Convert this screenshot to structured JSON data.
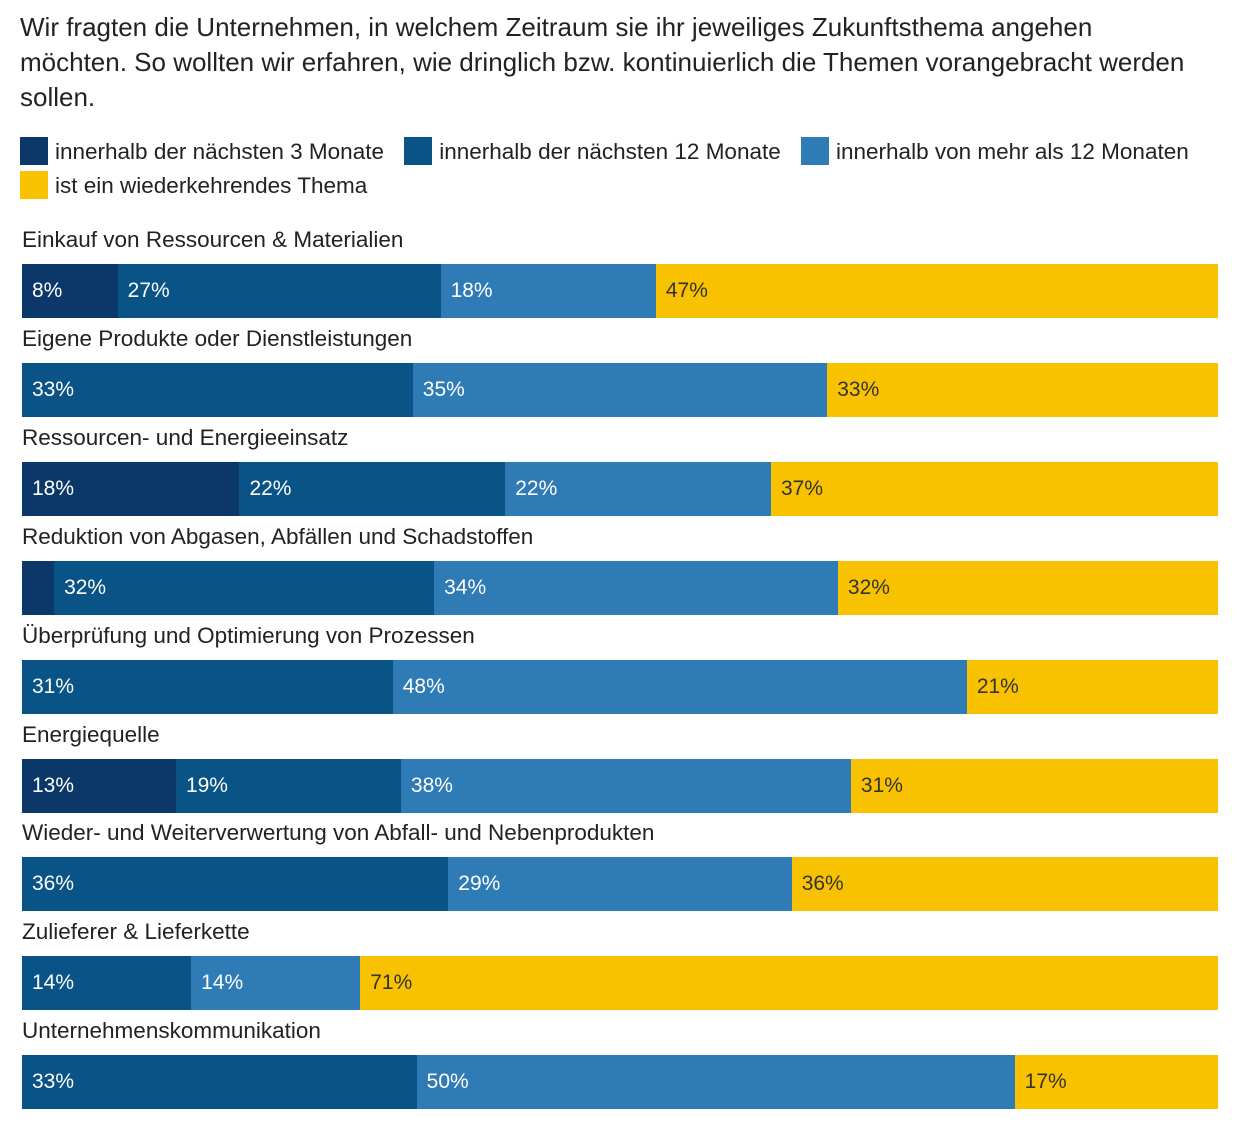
{
  "subtitle": "Wir fragten die Unternehmen, in welchem Zeitraum sie ihr jeweiliges Zukunftsthema angehen möchten. So wollten wir erfahren, wie dringlich bzw. kontinuierlich die Themen vorangebracht werden sollen.",
  "colors": [
    "#0b3868",
    "#0a5387",
    "#2e7bb6",
    "#f8c200"
  ],
  "chart_data": {
    "type": "bar",
    "orientation": "horizontal",
    "stacked": true,
    "value_unit": "%",
    "legend_position": "top",
    "series": [
      {
        "name": "innerhalb der nächsten 3 Monate"
      },
      {
        "name": "innerhalb der nächsten 12 Monate"
      },
      {
        "name": "innerhalb von mehr als 12 Monaten"
      },
      {
        "name": "ist ein wiederkehrendes Thema"
      }
    ],
    "rows": [
      {
        "label": "Einkauf von Ressourcen & Materialien",
        "values": [
          8,
          27,
          18,
          47
        ],
        "labels": [
          "8%",
          "27%",
          "18%",
          "47%"
        ]
      },
      {
        "label": "Eigene Produkte oder Dienstleistungen",
        "values": [
          0,
          33,
          35,
          33
        ],
        "labels": [
          "",
          "33%",
          "35%",
          "33%"
        ]
      },
      {
        "label": "Ressourcen- und Energieeinsatz",
        "values": [
          18,
          22,
          22,
          37
        ],
        "labels": [
          "18%",
          "22%",
          "22%",
          "37%"
        ]
      },
      {
        "label": "Reduktion von Abgasen, Abfällen und Schadstoffen",
        "values": [
          2.7,
          32,
          34,
          32
        ],
        "labels": [
          "",
          "32%",
          "34%",
          "32%"
        ]
      },
      {
        "label": "Überprüfung und Optimierung von Prozessen",
        "values": [
          0,
          31,
          48,
          21
        ],
        "labels": [
          "",
          "31%",
          "48%",
          "21%"
        ]
      },
      {
        "label": "Energiequelle",
        "values": [
          13,
          19,
          38,
          31
        ],
        "labels": [
          "13%",
          "19%",
          "38%",
          "31%"
        ]
      },
      {
        "label": "Wieder- und Weiterverwertung von Abfall- und Nebenprodukten",
        "values": [
          0,
          36,
          29,
          36
        ],
        "labels": [
          "",
          "36%",
          "29%",
          "36%"
        ]
      },
      {
        "label": "Zulieferer & Lieferkette",
        "values": [
          0,
          14,
          14,
          71
        ],
        "labels": [
          "",
          "14%",
          "14%",
          "71%"
        ]
      },
      {
        "label": "Unternehmenskommunikation",
        "values": [
          0,
          33,
          50,
          17
        ],
        "labels": [
          "",
          "33%",
          "50%",
          "17%"
        ]
      }
    ]
  }
}
